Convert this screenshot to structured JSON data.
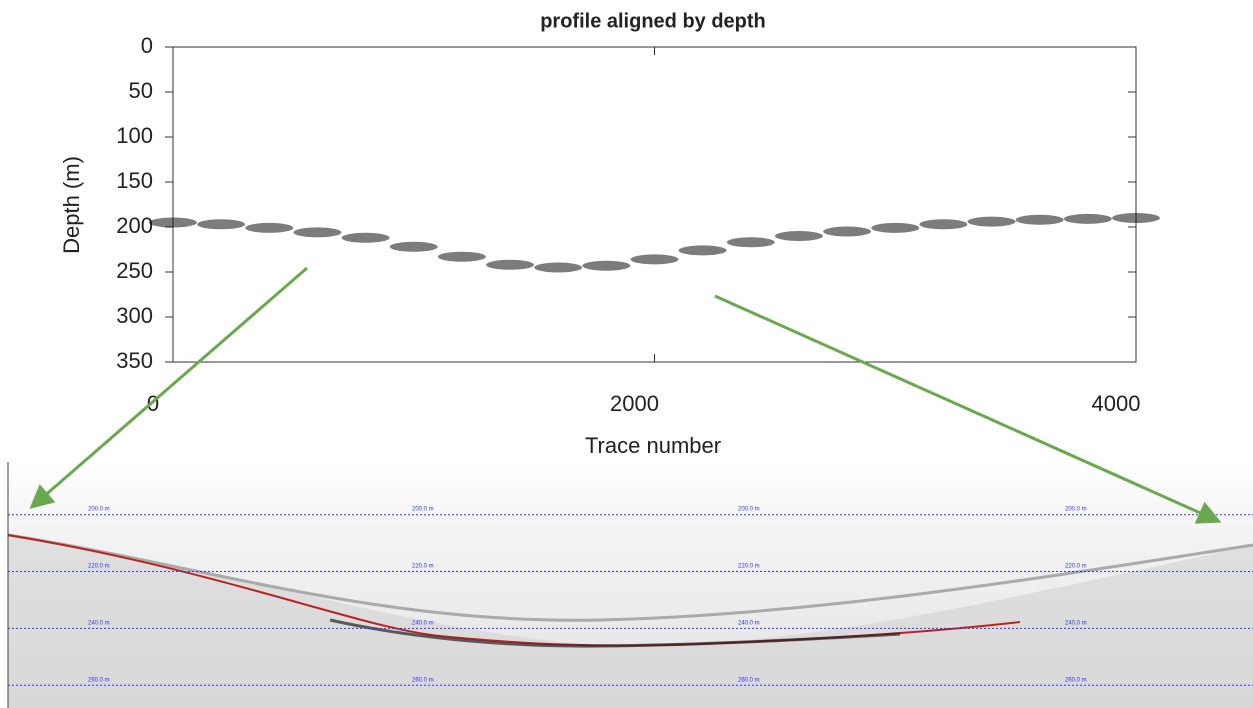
{
  "chart_data": [
    {
      "type": "scatter",
      "title": "profile aligned by depth",
      "x_label": "Trace number",
      "y_label": "Depth (m)",
      "x": [
        0,
        200,
        400,
        600,
        800,
        1000,
        1200,
        1400,
        1600,
        1800,
        2000,
        2200,
        2400,
        2600,
        2800,
        3000,
        3200,
        3400,
        3600,
        3800,
        4000
      ],
      "values": [
        195,
        197,
        201,
        206,
        212,
        222,
        233,
        242,
        245,
        243,
        236,
        226,
        217,
        210,
        205,
        201,
        197,
        194,
        192,
        191,
        190
      ],
      "color": "#111111",
      "xlim": [
        0,
        4000
      ],
      "xticks": [
        0,
        2000,
        4000
      ],
      "ylim": [
        0,
        350
      ],
      "yticks": [
        0,
        50,
        100,
        150,
        200,
        250,
        300,
        350
      ],
      "y_reversed": true
    },
    {
      "type": "echogram",
      "ylim": [
        179,
        268
      ],
      "yticks": [
        {
          "value": 200,
          "label": "200.0 m"
        },
        {
          "value": 220,
          "label": "220.0 m"
        },
        {
          "value": 240,
          "label": "240.0 m"
        },
        {
          "value": 260,
          "label": "260.0 m"
        }
      ],
      "color": "#3333ff"
    }
  ]
}
